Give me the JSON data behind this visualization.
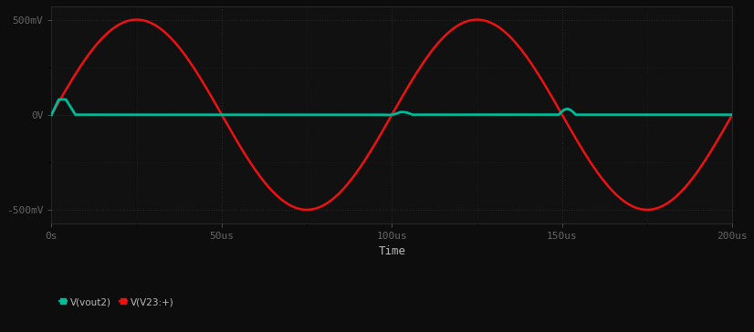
{
  "bg_color": "#0d0d0d",
  "plot_bg_color": "#111111",
  "grid_color": "#2a2a2a",
  "red_color": "#ee1111",
  "green_color": "#00bb99",
  "amplitude": 500,
  "period_us": 100,
  "t_start": 0,
  "t_end": 200,
  "ylim": [
    -570,
    570
  ],
  "xlim": [
    0,
    200
  ],
  "xticks": [
    0,
    50,
    100,
    150,
    200
  ],
  "xtick_labels": [
    "0s",
    "50us",
    "100us",
    "150us",
    "200us"
  ],
  "yticks": [
    -500,
    0,
    500
  ],
  "ytick_labels": [
    "-500mV",
    "0V",
    "500mV"
  ],
  "xlabel": "Time",
  "legend_entries": [
    "V(vout2)",
    "V(V23:+)"
  ],
  "tick_fontsize": 8,
  "label_fontsize": 9,
  "figsize": [
    8.26,
    3.64
  ],
  "dpi": 100
}
